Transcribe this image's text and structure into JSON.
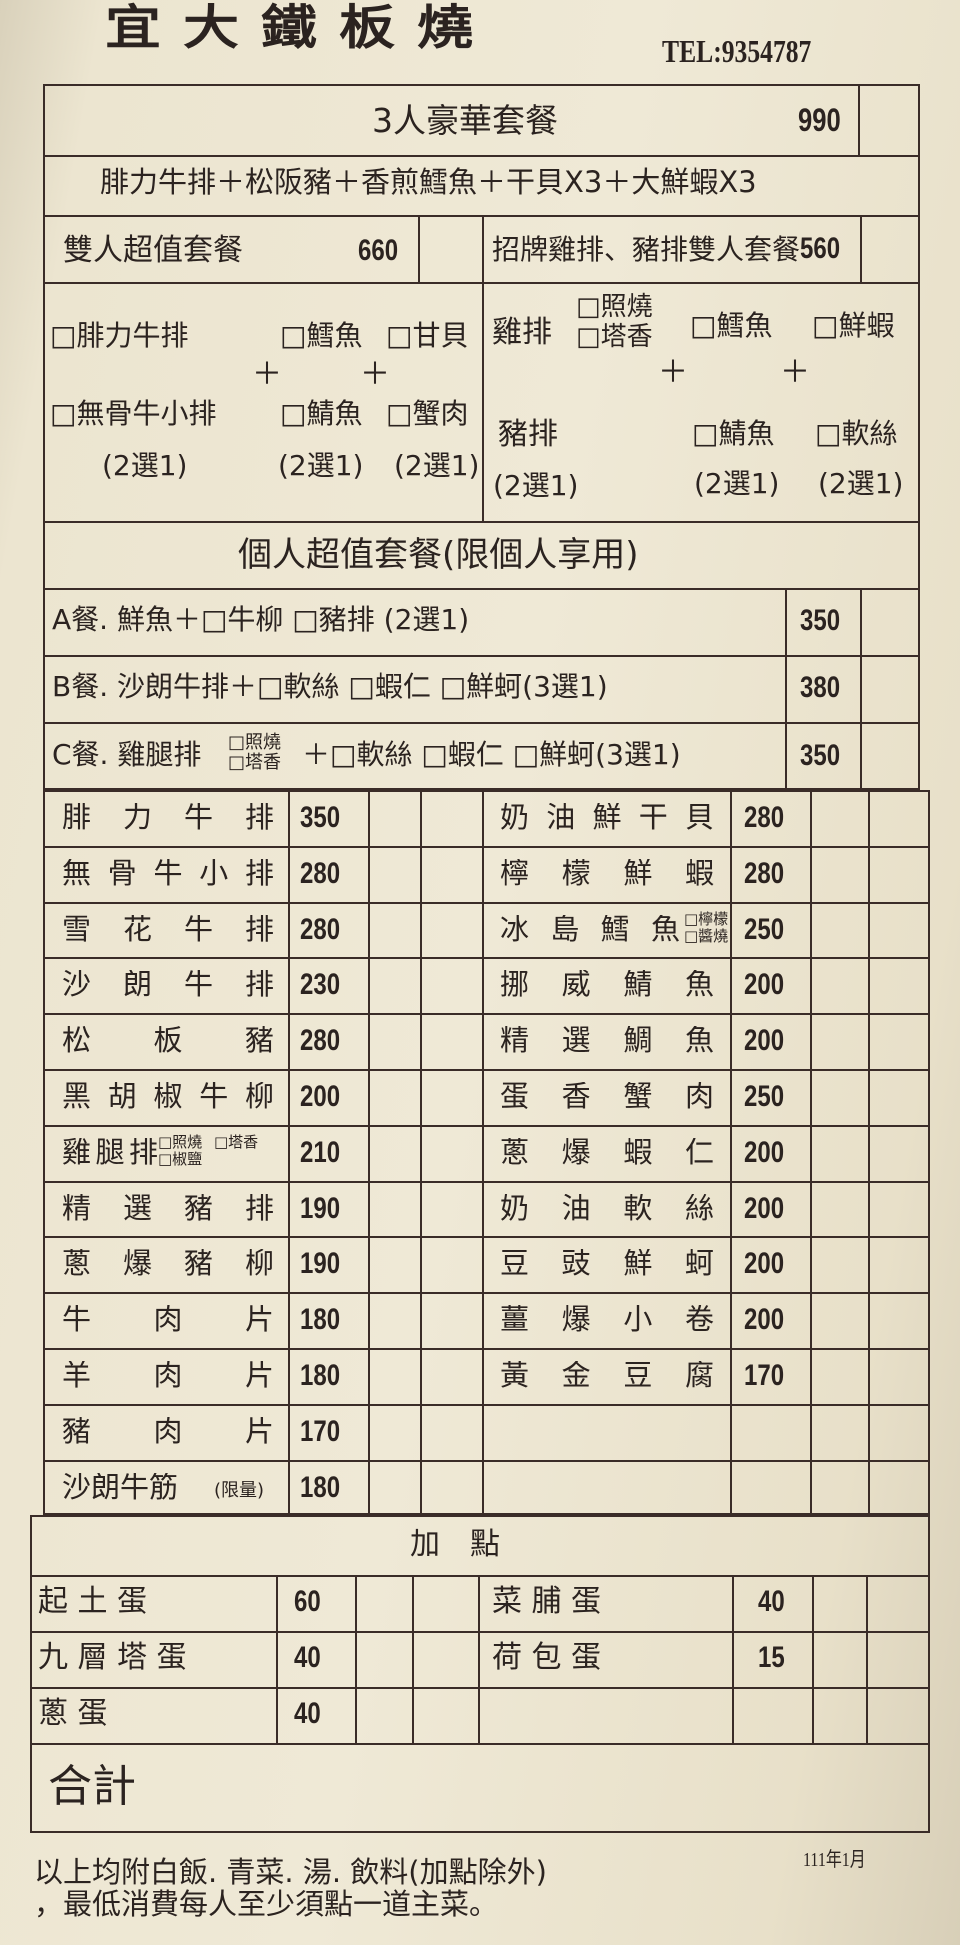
{
  "header": {
    "shop_name": "宜大鐵板燒",
    "tel": "TEL:9354787"
  },
  "set3": {
    "title": "3人豪華套餐",
    "price": "990",
    "contents": "腓力牛排＋松阪豬＋香煎鱈魚＋干貝X3＋大鮮蝦X3"
  },
  "set2": {
    "title": "雙人超值套餐",
    "price": "660",
    "options": {
      "a1": "□腓力牛排",
      "a2": "□無骨牛小排",
      "b1": "□鱈魚",
      "b2": "□鯖魚",
      "c1": "□甘貝",
      "c2": "□蟹肉",
      "plus": "＋",
      "choose": "(2選1)"
    }
  },
  "set_sign": {
    "title": "招牌雞排、豬排雙人套餐",
    "price": "560",
    "options": {
      "chicken": "雞排",
      "chicken_opt1": "□照燒",
      "chicken_opt2": "□塔香",
      "pork": "豬排",
      "b1": "□鱈魚",
      "b2": "□鯖魚",
      "c1": "□鮮蝦",
      "c2": "□軟絲",
      "plus": "＋",
      "choose": "(2選1)"
    }
  },
  "personal": {
    "title": "個人超值套餐(限個人享用)",
    "sets": [
      {
        "label": "A餐. 鮮魚＋□牛柳 □豬排 (2選1)",
        "price": "350"
      },
      {
        "label": "B餐. 沙朗牛排＋□軟絲 □蝦仁 □鮮蚵(3選1)",
        "price": "380"
      },
      {
        "label": "C餐. 雞腿排",
        "opt1": "□照燒",
        "opt2": "□塔香",
        "rest": "＋□軟絲 □蝦仁 □鮮蚵(3選1)",
        "price": "350"
      }
    ]
  },
  "menu_left": [
    {
      "name": "腓力牛排",
      "price": "350"
    },
    {
      "name": "無骨牛小排",
      "price": "280"
    },
    {
      "name": "雪花牛排",
      "price": "280"
    },
    {
      "name": "沙朗牛排",
      "price": "230"
    },
    {
      "name": "松板豬",
      "price": "280"
    },
    {
      "name": "黑胡椒牛柳",
      "price": "200"
    },
    {
      "name": "雞腿排",
      "opt1": "□照燒",
      "opt2": "□椒鹽",
      "opt3": "□塔香",
      "price": "210"
    },
    {
      "name": "精選豬排",
      "price": "190"
    },
    {
      "name": "蔥爆豬柳",
      "price": "190"
    },
    {
      "name": "牛肉片",
      "price": "180"
    },
    {
      "name": "羊肉片",
      "price": "180"
    },
    {
      "name": "豬肉片",
      "price": "170"
    },
    {
      "name": "沙朗牛筋",
      "note": "(限量)",
      "price": "180"
    }
  ],
  "menu_right": [
    {
      "name": "奶油鮮干貝",
      "price": "280"
    },
    {
      "name": "檸檬鮮蝦",
      "price": "280"
    },
    {
      "name": "冰島鱈魚",
      "opt1": "□檸檬",
      "opt2": "□醬燒",
      "price": "250"
    },
    {
      "name": "挪威鯖魚",
      "price": "200"
    },
    {
      "name": "精選鯛魚",
      "price": "200"
    },
    {
      "name": "蛋香蟹肉",
      "price": "250"
    },
    {
      "name": "蔥爆蝦仁",
      "price": "200"
    },
    {
      "name": "奶油軟絲",
      "price": "200"
    },
    {
      "name": "豆豉鮮蚵",
      "price": "200"
    },
    {
      "name": "薑爆小卷",
      "price": "200"
    },
    {
      "name": "黃金豆腐",
      "price": "170"
    }
  ],
  "addons": {
    "title": "加　點",
    "left": [
      {
        "name": "起 土 蛋",
        "price": "60"
      },
      {
        "name": "九 層 塔 蛋",
        "price": "40"
      },
      {
        "name": "蔥 蛋",
        "price": "40"
      }
    ],
    "right": [
      {
        "name": "菜 脯 蛋",
        "price": "40"
      },
      {
        "name": "荷 包 蛋",
        "price": "15"
      }
    ]
  },
  "total_label": "合計",
  "footer": {
    "line1": "以上均附白飯. 青菜. 湯. 飲料(加點除外)",
    "line2": "，最低消費每人至少須點一道主菜。",
    "date": "111年1月"
  }
}
